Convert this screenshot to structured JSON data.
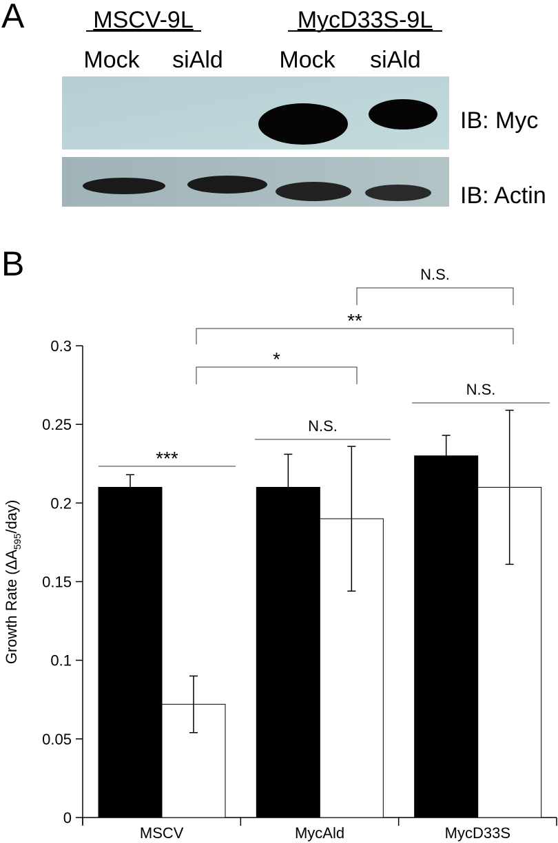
{
  "panel_a": {
    "letter": "A",
    "groups": [
      "MSCV-9L",
      "MycD33S-9L"
    ],
    "lanes": [
      "Mock",
      "siAld",
      "Mock",
      "siAld"
    ],
    "blots": [
      "IB: Myc",
      "IB: Actin"
    ]
  },
  "chart_data": {
    "type": "bar",
    "letter": "B",
    "ylabel": {
      "prefix": "Growth Rate (ΔA",
      "sub": "595",
      "suffix": "/day)"
    },
    "categories": [
      "MSCV",
      "MycAld",
      "MycD33S"
    ],
    "series": [
      {
        "color": "#000000",
        "values": [
          0.21,
          0.21,
          0.23
        ],
        "errors": [
          0.008,
          0.021,
          0.013
        ]
      },
      {
        "color": "#ffffff",
        "values": [
          0.072,
          0.19,
          0.21
        ],
        "errors": [
          0.018,
          0.046,
          0.049
        ]
      }
    ],
    "ylim": [
      0,
      0.3
    ],
    "yticks": [
      0,
      0.05,
      0.1,
      0.15,
      0.2,
      0.25,
      0.3
    ],
    "annotations": [
      "***",
      "N.S.",
      "N.S.",
      "*",
      "**",
      "N.S."
    ]
  }
}
